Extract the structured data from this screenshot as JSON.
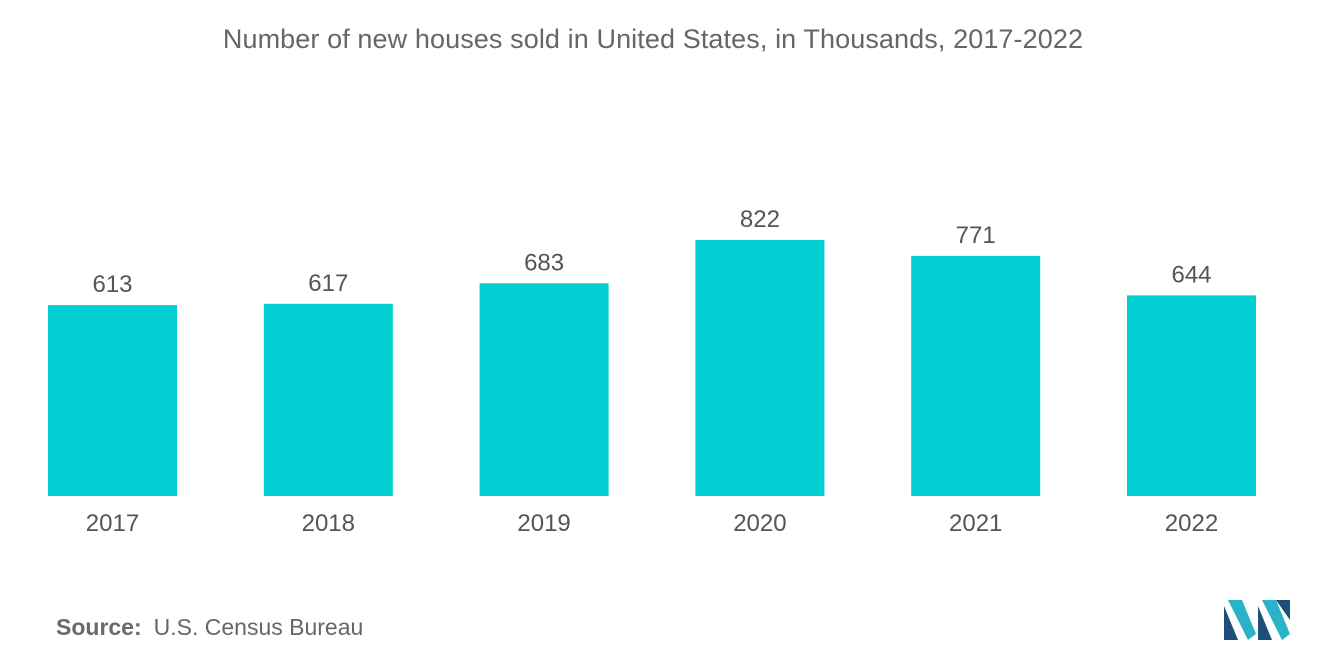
{
  "chart_data": {
    "type": "bar",
    "title": "Number of new houses sold in United States, in Thousands, 2017-2022",
    "xlabel": "",
    "ylabel": "",
    "categories": [
      "2017",
      "2018",
      "2019",
      "2020",
      "2021",
      "2022"
    ],
    "values": [
      613,
      617,
      683,
      822,
      771,
      644
    ],
    "ylim": [
      0,
      822
    ],
    "grid": false,
    "legend": "none",
    "bar_color": "#00CED1"
  },
  "source": {
    "label": "Source:",
    "text": "U.S. Census Bureau"
  },
  "logo": {
    "icon": "mordor-intelligence-logo-icon",
    "colors": [
      "#1F4E79",
      "#2AB3C8"
    ]
  }
}
